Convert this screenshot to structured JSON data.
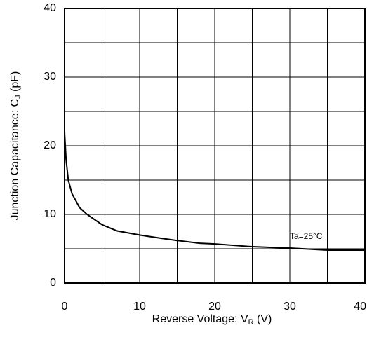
{
  "chart_data": {
    "type": "line",
    "x_label": {
      "text": "Reverse Voltage: V",
      "sub": "R",
      "unit": " (V)"
    },
    "y_label": {
      "text": "Junction Capacitance: C",
      "sub": "J",
      "unit": " (pF)"
    },
    "annotation": "Ta=25°C",
    "x": [
      0,
      0.2,
      0.5,
      1,
      1.5,
      2,
      3,
      5,
      7,
      10,
      13,
      15,
      18,
      20,
      25,
      30,
      35,
      40
    ],
    "series": [
      {
        "color": "#000000",
        "values": [
          22,
          18,
          15,
          13,
          12,
          11,
          10,
          8.5,
          7.6,
          7,
          6.5,
          6.2,
          5.8,
          5.7,
          5.3,
          5.1,
          4.8,
          4.8
        ]
      }
    ],
    "xlim": [
      0,
      40
    ],
    "ylim": [
      0,
      40
    ],
    "xticks": [
      0,
      10,
      20,
      30,
      40
    ],
    "yticks": [
      0,
      10,
      20,
      30,
      40
    ],
    "xgrid": [
      5,
      10,
      15,
      20,
      25,
      30,
      35
    ],
    "ygrid": [
      5,
      10,
      15,
      20,
      25,
      30,
      35
    ],
    "grid": true
  }
}
